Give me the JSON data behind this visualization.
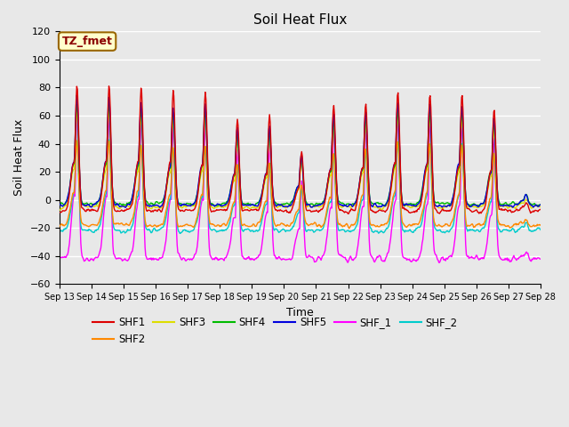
{
  "title": "Soil Heat Flux",
  "xlabel": "Time",
  "ylabel": "Soil Heat Flux",
  "xlim_days": [
    13,
    28
  ],
  "ylim": [
    -60,
    120
  ],
  "yticks": [
    -60,
    -40,
    -20,
    0,
    20,
    40,
    60,
    80,
    100,
    120
  ],
  "xtick_labels": [
    "Sep 13",
    "Sep 14",
    "Sep 15",
    "Sep 16",
    "Sep 17",
    "Sep 18",
    "Sep 19",
    "Sep 20",
    "Sep 21",
    "Sep 22",
    "Sep 23",
    "Sep 24",
    "Sep 25",
    "Sep 26",
    "Sep 27",
    "Sep 28"
  ],
  "legend_entries": [
    "SHF1",
    "SHF2",
    "SHF3",
    "SHF4",
    "SHF5",
    "SHF_1",
    "SHF_2"
  ],
  "colors": {
    "SHF1": "#dd0000",
    "SHF2": "#ff8800",
    "SHF3": "#dddd00",
    "SHF4": "#00bb00",
    "SHF5": "#0000dd",
    "SHF_1": "#ff00ff",
    "SHF_2": "#00cccc"
  },
  "annotation_text": "TZ_fmet",
  "annotation_bg": "#ffffcc",
  "annotation_border": "#996600",
  "plot_bg": "#e8e8e8",
  "grid_color": "#ffffff",
  "title_fontsize": 11,
  "figsize": [
    6.4,
    4.8
  ],
  "dpi": 100
}
